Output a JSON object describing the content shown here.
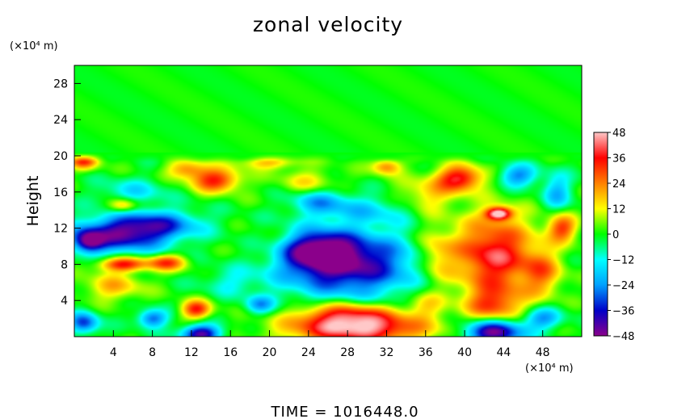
{
  "chart_data": {
    "type": "heatmap",
    "title": "zonal velocity",
    "ylabel": "Height",
    "xlabel": "",
    "x_unit": "(×10⁴ m)",
    "y_unit": "(×10⁴ m)",
    "xlim": [
      0,
      52
    ],
    "ylim": [
      0,
      30
    ],
    "x_ticks": [
      4,
      8,
      12,
      16,
      20,
      24,
      28,
      32,
      36,
      40,
      44,
      48
    ],
    "y_ticks": [
      4,
      8,
      12,
      16,
      20,
      24,
      28
    ],
    "colorbar": {
      "range": [
        -48,
        48
      ],
      "ticks": [
        48,
        36,
        24,
        12,
        0,
        -12,
        -24,
        -36,
        -48
      ],
      "colors": [
        "#8b008b",
        "#0000c8",
        "#00a0ff",
        "#00ffff",
        "#00ff00",
        "#ffff00",
        "#ff8000",
        "#ff0000",
        "#ffc8c8"
      ]
    },
    "background_value": 0,
    "features": [
      {
        "x": 28,
        "y": 8,
        "rx": 7,
        "ry": 3.6,
        "value": -44
      },
      {
        "x": 25,
        "y": 9.5,
        "rx": 3.5,
        "ry": 2,
        "value": -36
      },
      {
        "x": 5,
        "y": 11.3,
        "rx": 5,
        "ry": 2,
        "value": -40
      },
      {
        "x": 9,
        "y": 12.5,
        "rx": 4.5,
        "ry": 1.5,
        "value": -22
      },
      {
        "x": 43,
        "y": 9,
        "rx": 4.2,
        "ry": 4.2,
        "value": 40
      },
      {
        "x": 43.5,
        "y": 13.6,
        "rx": 1.3,
        "ry": 0.7,
        "value": 48
      },
      {
        "x": 43,
        "y": 3.5,
        "rx": 3,
        "ry": 2,
        "value": 26
      },
      {
        "x": 39.5,
        "y": 17.5,
        "rx": 2.4,
        "ry": 1.4,
        "value": 38
      },
      {
        "x": 29,
        "y": 0.8,
        "rx": 7,
        "ry": 1.6,
        "value": 44
      },
      {
        "x": 28,
        "y": 2.5,
        "rx": 5,
        "ry": 1.4,
        "value": 30
      },
      {
        "x": 43,
        "y": 0.5,
        "rx": 3,
        "ry": 1.4,
        "value": -48
      },
      {
        "x": 13,
        "y": 0.3,
        "rx": 2,
        "ry": 1,
        "value": -44
      },
      {
        "x": 45.5,
        "y": 17.8,
        "rx": 2,
        "ry": 1.2,
        "value": -26
      },
      {
        "x": 5,
        "y": 8,
        "rx": 2.5,
        "ry": 0.8,
        "value": 36
      },
      {
        "x": 9.5,
        "y": 8.2,
        "rx": 2,
        "ry": 0.9,
        "value": 30
      },
      {
        "x": 1,
        "y": 19.5,
        "rx": 1.5,
        "ry": 1,
        "value": 32
      },
      {
        "x": 14.5,
        "y": 17.3,
        "rx": 2.5,
        "ry": 1.3,
        "value": 34
      },
      {
        "x": 11.5,
        "y": 18.5,
        "rx": 2,
        "ry": 1,
        "value": 22
      },
      {
        "x": 6,
        "y": 16,
        "rx": 3.5,
        "ry": 1.5,
        "value": -14
      },
      {
        "x": 5,
        "y": 14.5,
        "rx": 1.5,
        "ry": 0.8,
        "value": 24
      },
      {
        "x": 12.5,
        "y": 3,
        "rx": 1.5,
        "ry": 1,
        "value": 34
      },
      {
        "x": 8,
        "y": 2,
        "rx": 1.5,
        "ry": 1,
        "value": -30
      },
      {
        "x": 1,
        "y": 1.5,
        "rx": 1.5,
        "ry": 1.2,
        "value": -32
      },
      {
        "x": 19,
        "y": 3.5,
        "rx": 1.5,
        "ry": 1,
        "value": -22
      },
      {
        "x": 30.5,
        "y": 14,
        "rx": 5,
        "ry": 1.6,
        "value": -14
      },
      {
        "x": 25,
        "y": 15,
        "rx": 3,
        "ry": 1.5,
        "value": -20
      },
      {
        "x": 49.5,
        "y": 16,
        "rx": 1.5,
        "ry": 2,
        "value": -20
      },
      {
        "x": 36,
        "y": 15.5,
        "rx": 3,
        "ry": 2,
        "value": 16
      },
      {
        "x": 32,
        "y": 18.8,
        "rx": 1.5,
        "ry": 0.9,
        "value": 24
      },
      {
        "x": 4,
        "y": 5.5,
        "rx": 3,
        "ry": 1.5,
        "value": 18
      },
      {
        "x": 20,
        "y": 10,
        "rx": 3,
        "ry": 2,
        "value": 6
      },
      {
        "x": 37,
        "y": 9,
        "rx": 2,
        "ry": 3,
        "value": 18
      },
      {
        "x": 48,
        "y": 7,
        "rx": 2,
        "ry": 2.5,
        "value": 20
      },
      {
        "x": 50,
        "y": 12,
        "rx": 1.5,
        "ry": 1.5,
        "value": 30
      },
      {
        "x": 24,
        "y": 17,
        "rx": 3,
        "ry": 1.5,
        "value": 14
      },
      {
        "x": 20,
        "y": 19.3,
        "rx": 3,
        "ry": 0.8,
        "value": 18
      },
      {
        "x": 48,
        "y": 2,
        "rx": 2,
        "ry": 1.2,
        "value": -24
      },
      {
        "x": 36,
        "y": 3.5,
        "rx": 2,
        "ry": 1.5,
        "value": 14
      },
      {
        "x": 16,
        "y": 6,
        "rx": 3,
        "ry": 1.5,
        "value": -10
      },
      {
        "x": 1.5,
        "y": 10.5,
        "rx": 1.5,
        "ry": 1.2,
        "value": -36
      }
    ]
  },
  "footer": {
    "time_text": "TIME  =  1016448.0"
  }
}
